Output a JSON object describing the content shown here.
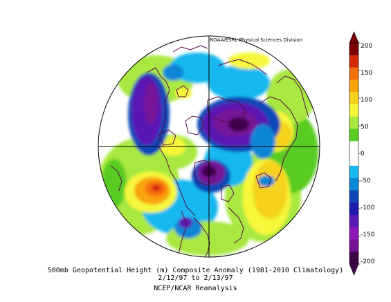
{
  "credit": "NOAA/ESRL Physical Sciences Division",
  "title": "500mb Geopotential Height (m) Composite Anomaly (1981-2010 Climatology)",
  "dates": "2/12/97  to 2/13/97",
  "source": "NCEP/NCAR Reanalysis",
  "colorbar": {
    "ticks": [
      "200",
      "150",
      "100",
      "50",
      "0",
      "-50",
      "-100",
      "-150",
      "-200"
    ],
    "colors": [
      "#7a0000",
      "#d42a08",
      "#f56f0c",
      "#f9a30a",
      "#f5d21c",
      "#f6f73a",
      "#a8e83f",
      "#58cc22",
      "#ffffff",
      "#ffffff",
      "#19b8ef",
      "#0a86d6",
      "#1047b7",
      "#1c1bb0",
      "#5a18b3",
      "#8c1ab8",
      "#771297",
      "#3c0648"
    ]
  }
}
